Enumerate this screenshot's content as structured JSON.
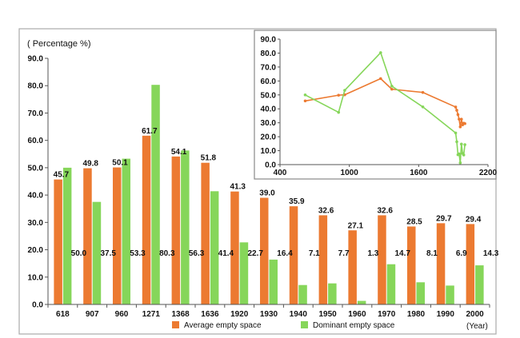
{
  "colors": {
    "average": "#ec7a31",
    "dominant": "#86d65a",
    "axis": "#555555",
    "frame": "#aaaaaa",
    "text": "#111111"
  },
  "chart_data": [
    {
      "type": "bar",
      "ylabel": "( Percentage %)",
      "xunit": "(Year)",
      "ylim": [
        0,
        90
      ],
      "yticks": [
        "0.0",
        "10.0",
        "20.0",
        "30.0",
        "40.0",
        "50.0",
        "60.0",
        "70.0",
        "80.0",
        "90.0"
      ],
      "categories": [
        "618",
        "907",
        "960",
        "1271",
        "1368",
        "1636",
        "1920",
        "1930",
        "1940",
        "1950",
        "1960",
        "1970",
        "1980",
        "1990",
        "2000"
      ],
      "legend_position": "bottom",
      "series": [
        {
          "name": "Average empty space",
          "values": [
            45.7,
            49.8,
            50.1,
            61.7,
            54.1,
            51.8,
            41.3,
            39.0,
            35.9,
            32.6,
            27.1,
            32.6,
            28.5,
            29.7,
            29.4
          ],
          "labels": [
            "45.7",
            "49.8",
            "50.1",
            "61.7",
            "54.1",
            "51.8",
            "41.3",
            "39.0",
            "35.9",
            "32.6",
            "27.1",
            "32.6",
            "28.5",
            "29.7",
            "29.4"
          ]
        },
        {
          "name": "Dominant empty space",
          "values": [
            50.0,
            37.5,
            53.3,
            80.3,
            56.3,
            41.4,
            22.7,
            16.4,
            7.1,
            7.7,
            1.3,
            14.7,
            8.1,
            6.9,
            14.3
          ],
          "labels": [
            "50.0",
            "37.5",
            "53.3",
            "80.3",
            "56.3",
            "41.4",
            "22.7",
            "16.4",
            "7.1",
            "7.7",
            "1.3",
            "14.7",
            "8.1",
            "6.9",
            "14.3"
          ]
        }
      ]
    },
    {
      "type": "line",
      "xlim": [
        400,
        2200
      ],
      "ylim": [
        0,
        90
      ],
      "xticks": [
        "400",
        "1000",
        "1600",
        "2200"
      ],
      "yticks": [
        "0.0",
        "10.0",
        "20.0",
        "30.0",
        "40.0",
        "50.0",
        "60.0",
        "70.0",
        "80.0",
        "90.0"
      ],
      "x": [
        618,
        907,
        960,
        1271,
        1368,
        1636,
        1920,
        1930,
        1940,
        1950,
        1960,
        1970,
        1980,
        1990,
        2000
      ],
      "series": [
        {
          "values": [
            45.7,
            49.8,
            50.1,
            61.7,
            54.1,
            51.8,
            41.3,
            39.0,
            35.9,
            32.6,
            27.1,
            32.6,
            28.5,
            29.7,
            29.4
          ]
        },
        {
          "values": [
            50.0,
            37.5,
            53.3,
            80.3,
            56.3,
            41.4,
            22.7,
            16.4,
            7.1,
            7.7,
            1.3,
            14.7,
            8.1,
            6.9,
            14.3
          ]
        }
      ]
    }
  ]
}
